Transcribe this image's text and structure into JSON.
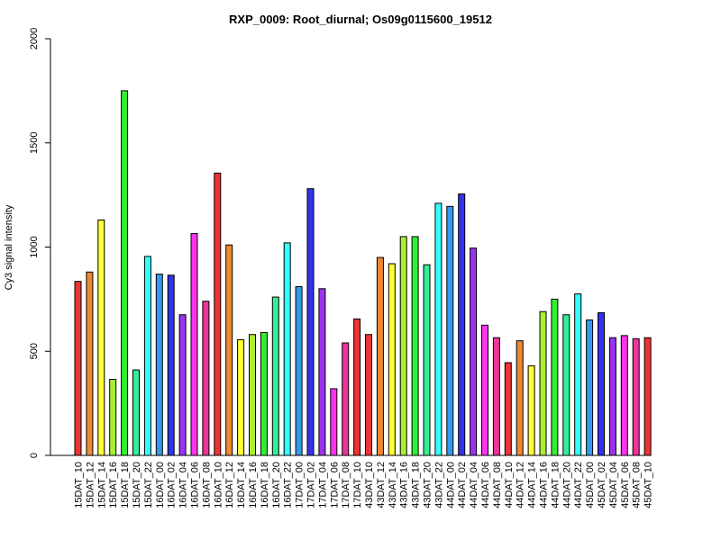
{
  "chart_data": {
    "type": "bar",
    "title": "RXP_0009: Root_diurnal; Os09g0115600_19512",
    "xlabel": "",
    "ylabel": "Cy3 signal intensity",
    "ylim": [
      0,
      2000
    ],
    "yticks": [
      0,
      500,
      1000,
      1500,
      2000
    ],
    "grid": false,
    "categories": [
      "15DAT_10",
      "15DAT_12",
      "15DAT_14",
      "15DAT_16",
      "15DAT_18",
      "15DAT_20",
      "15DAT_22",
      "16DAT_00",
      "16DAT_02",
      "16DAT_04",
      "16DAT_06",
      "16DAT_08",
      "16DAT_10",
      "16DAT_12",
      "16DAT_14",
      "16DAT_16",
      "16DAT_18",
      "16DAT_20",
      "16DAT_22",
      "17DAT_00",
      "17DAT_02",
      "17DAT_04",
      "17DAT_06",
      "17DAT_08",
      "17DAT_10",
      "43DAT_10",
      "43DAT_12",
      "43DAT_14",
      "43DAT_16",
      "43DAT_18",
      "43DAT_20",
      "43DAT_22",
      "44DAT_00",
      "44DAT_02",
      "44DAT_04",
      "44DAT_06",
      "44DAT_08",
      "44DAT_10",
      "44DAT_12",
      "44DAT_14",
      "44DAT_16",
      "44DAT_18",
      "44DAT_20",
      "44DAT_22",
      "45DAT_00",
      "45DAT_02",
      "45DAT_04",
      "45DAT_06",
      "45DAT_08",
      "45DAT_10"
    ],
    "values": [
      835,
      880,
      1130,
      365,
      1750,
      410,
      955,
      870,
      865,
      675,
      1065,
      740,
      1355,
      1010,
      555,
      580,
      590,
      760,
      1020,
      810,
      1280,
      800,
      320,
      540,
      655,
      580,
      950,
      920,
      1050,
      1050,
      915,
      1210,
      1195,
      1255,
      995,
      625,
      565,
      445,
      550,
      430,
      690,
      750,
      675,
      775,
      650,
      685,
      565,
      575,
      560,
      565
    ],
    "colors": [
      "#ee3333",
      "#ee8833",
      "#ffff33",
      "#aaee33",
      "#33ee33",
      "#33ee99",
      "#33ffff",
      "#3399ee",
      "#3333ee",
      "#9933ee",
      "#ff33ee",
      "#ee3399",
      "#ee3333",
      "#ee8833",
      "#ffff33",
      "#aaee33",
      "#33ee33",
      "#33ee99",
      "#33ffff",
      "#3399ee",
      "#3333ee",
      "#9933ee",
      "#ff33ee",
      "#ee3399",
      "#ee3333",
      "#ee3333",
      "#ee8833",
      "#ffff33",
      "#aaee33",
      "#33ee33",
      "#33ee99",
      "#33ffff",
      "#3399ee",
      "#3333ee",
      "#9933ee",
      "#ff33ee",
      "#ee3399",
      "#ee3333",
      "#ee8833",
      "#ffff33",
      "#aaee33",
      "#33ee33",
      "#33ee99",
      "#33ffff",
      "#3399ee",
      "#3333ee",
      "#9933ee",
      "#ff33ee",
      "#ee3399",
      "#ee3333"
    ]
  }
}
